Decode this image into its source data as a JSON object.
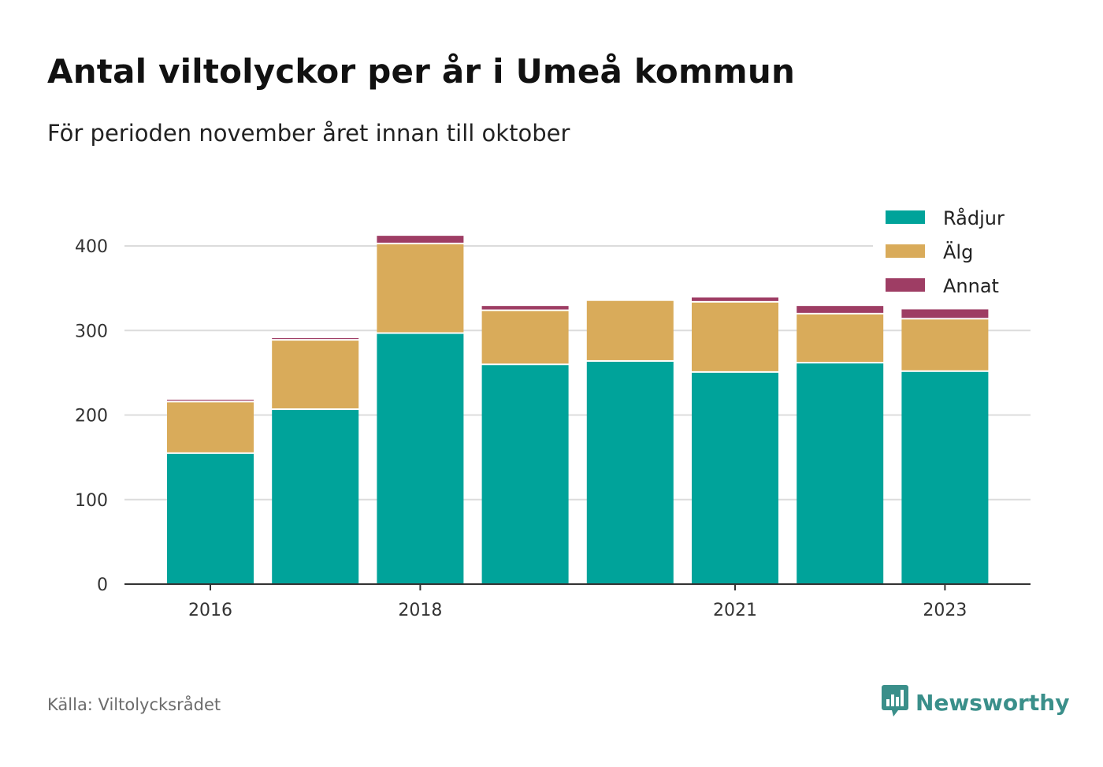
{
  "title": "Antal viltolyckor per år i Umeå kommun",
  "subtitle": "För perioden november året innan till oktober",
  "source": "Källa: Viltolycksrådet",
  "brand": {
    "name": "Newsworthy",
    "color": "#3a8f8a",
    "logo_icon": "bar-chart-speech-bubble-icon"
  },
  "chart_data": {
    "type": "bar",
    "stacked": true,
    "categories": [
      "2016",
      "2017",
      "2018",
      "2019",
      "2020",
      "2021",
      "2022",
      "2023"
    ],
    "x_tick_labels": [
      "2016",
      "2018",
      "2021",
      "2023"
    ],
    "series": [
      {
        "name": "Rådjur",
        "color": "#00a39a",
        "values": [
          154,
          206,
          296,
          259,
          263,
          250,
          261,
          251
        ]
      },
      {
        "name": "Älg",
        "color": "#d9ab5a",
        "values": [
          61,
          82,
          106,
          64,
          72,
          83,
          58,
          62
        ]
      },
      {
        "name": "Annat",
        "color": "#9e3d64",
        "values": [
          3,
          3,
          10,
          6,
          0,
          6,
          10,
          12
        ]
      }
    ],
    "ylim": [
      0,
      430
    ],
    "y_ticks": [
      0,
      100,
      200,
      300,
      400
    ],
    "grid": true,
    "legend_position": "top-right"
  }
}
